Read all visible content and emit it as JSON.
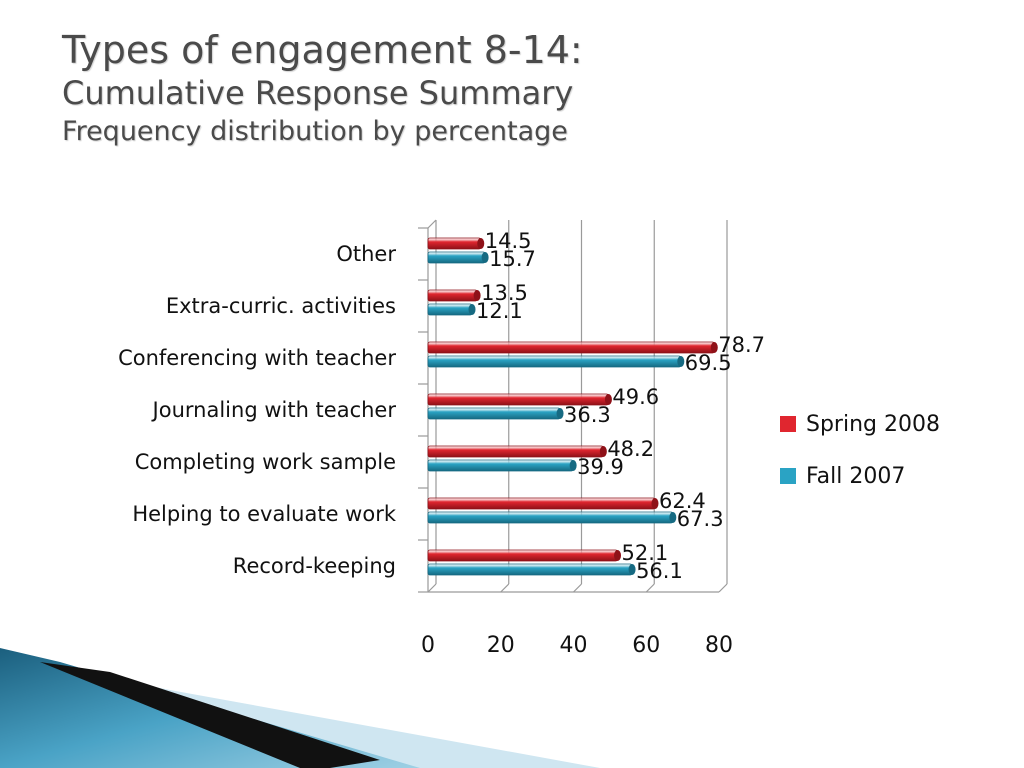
{
  "slide": {
    "title_line1": "Types of engagement 8-14:",
    "title_line2": "Cumulative Response Summary",
    "title_line3": "Frequency distribution by percentage"
  },
  "colors": {
    "spring": "#e0262f",
    "fall": "#2aa3c4",
    "grid": "#9a9a9a",
    "title": "#4a4a4a"
  },
  "chart_data": {
    "type": "bar",
    "orientation": "horizontal",
    "categories": [
      "Other",
      "Extra-curric. activities",
      "Conferencing with teacher",
      "Journaling with teacher",
      "Completing work sample",
      "Helping to evaluate work",
      "Record-keeping"
    ],
    "series": [
      {
        "name": "Spring 2008",
        "values": [
          14.5,
          13.5,
          78.7,
          49.6,
          48.2,
          62.4,
          52.1
        ]
      },
      {
        "name": "Fall 2007",
        "values": [
          15.7,
          12.1,
          69.5,
          36.3,
          39.9,
          67.3,
          56.1
        ]
      }
    ],
    "xticks": [
      0,
      20,
      40,
      60,
      80
    ],
    "xlim": [
      0,
      80
    ],
    "grid": true,
    "legend_position": "right"
  }
}
